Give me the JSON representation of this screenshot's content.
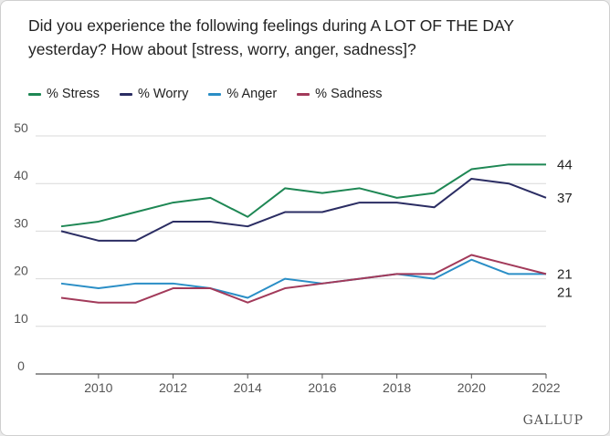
{
  "title": "Did you experience the following feelings during A LOT OF THE DAY yesterday? How about [stress, worry, anger, sadness]?",
  "brand": "GALLUP",
  "legend": [
    {
      "label": "% Stress",
      "color": "#1e8754"
    },
    {
      "label": "% Worry",
      "color": "#2b2d63"
    },
    {
      "label": "% Anger",
      "color": "#2a8ec6"
    },
    {
      "label": "% Sadness",
      "color": "#a23a5a"
    }
  ],
  "chart_data": {
    "type": "line",
    "x": [
      2009,
      2010,
      2011,
      2012,
      2013,
      2014,
      2015,
      2016,
      2017,
      2018,
      2019,
      2020,
      2021,
      2022
    ],
    "xticks": [
      "2010",
      "2012",
      "2014",
      "2016",
      "2018",
      "2020",
      "2022"
    ],
    "yticks": [
      "0",
      "10",
      "20",
      "30",
      "40",
      "50"
    ],
    "ylim": [
      0,
      50
    ],
    "grid": "horizontal",
    "legend_position": "top-left",
    "series": [
      {
        "name": "% Stress",
        "color": "#1e8754",
        "values": [
          31,
          32,
          34,
          36,
          37,
          33,
          39,
          38,
          39,
          37,
          38,
          43,
          44,
          44
        ],
        "end_label": "44"
      },
      {
        "name": "% Worry",
        "color": "#2b2d63",
        "values": [
          30,
          28,
          28,
          32,
          32,
          31,
          34,
          34,
          36,
          36,
          35,
          41,
          40,
          37
        ],
        "end_label": "37"
      },
      {
        "name": "% Anger",
        "color": "#2a8ec6",
        "values": [
          19,
          18,
          19,
          19,
          18,
          16,
          20,
          19,
          20,
          21,
          20,
          24,
          21,
          21
        ],
        "end_label": "21"
      },
      {
        "name": "% Sadness",
        "color": "#a23a5a",
        "values": [
          16,
          15,
          15,
          18,
          18,
          15,
          18,
          19,
          20,
          21,
          21,
          25,
          23,
          21
        ],
        "end_label": "21"
      }
    ]
  }
}
